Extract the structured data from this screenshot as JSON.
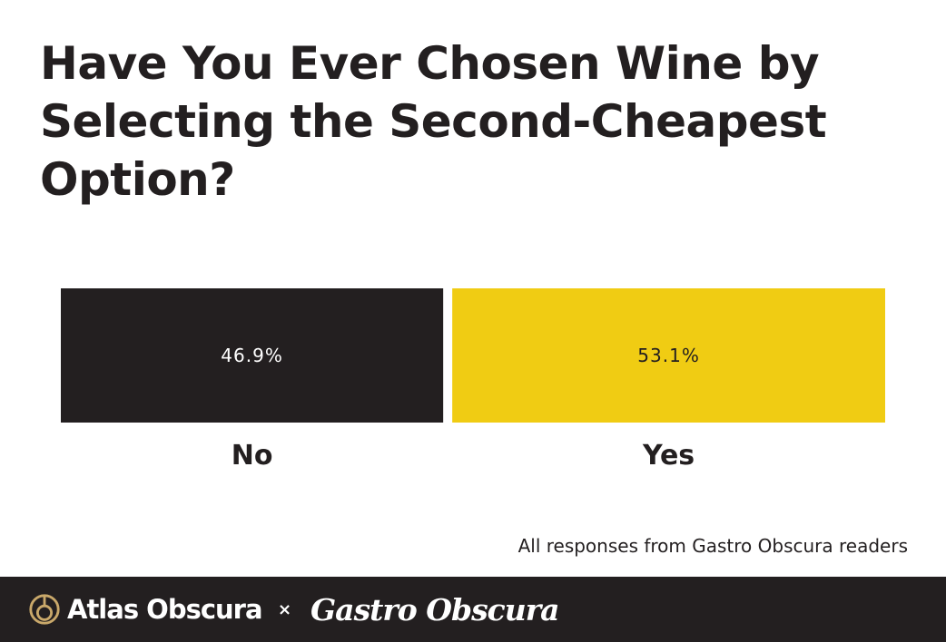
{
  "chart_data": {
    "type": "bar",
    "title": "Have You Ever Chosen Wine by Selecting the Second-Cheapest Option?",
    "categories": [
      "No",
      "Yes"
    ],
    "values": [
      46.9,
      53.1
    ],
    "value_labels": [
      "46.9%",
      "53.1%"
    ],
    "unit": "%",
    "colors": [
      "#231f20",
      "#f0cc13"
    ],
    "label_colors": [
      "#ffffff",
      "#231f20"
    ],
    "layout": "proportional horizontal segments, labels inside bars, category labels below",
    "grid": false,
    "legend": "none"
  },
  "source_note": "All responses from Gastro Obscura readers",
  "footer": {
    "atlas_logo_text": "Atlas Obscura",
    "separator": "×",
    "gastro_logo_text": "Gastro Obscura",
    "background": "#231f20",
    "accent": "#c9a86a"
  }
}
